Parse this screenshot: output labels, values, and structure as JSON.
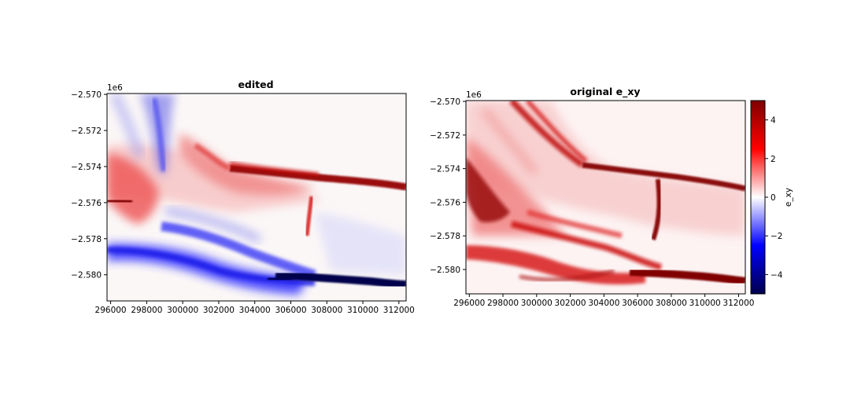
{
  "chart_data": [
    {
      "type": "heatmap",
      "title": "edited",
      "offset_label": "1e6",
      "xlabel": "",
      "ylabel": "",
      "xlim": [
        295800,
        312400
      ],
      "ylim": [
        -2581450,
        -2569950
      ],
      "x_ticks": [
        296000,
        298000,
        300000,
        302000,
        304000,
        306000,
        308000,
        310000,
        312000
      ],
      "x_tick_labels": [
        "296000",
        "298000",
        "300000",
        "302000",
        "304000",
        "306000",
        "308000",
        "310000",
        "312000"
      ],
      "y_ticks": [
        -2570000,
        -2572000,
        -2574000,
        -2576000,
        -2578000,
        -2580000
      ],
      "y_tick_labels": [
        "−2.570",
        "−2.572",
        "−2.574",
        "−2.576",
        "−2.578",
        "−2.580"
      ],
      "colormap": "seismic",
      "vmin": -5,
      "vmax": 5,
      "colorbar": false
    },
    {
      "type": "heatmap",
      "title": "original e_xy",
      "offset_label": "1e6",
      "xlabel": "",
      "ylabel": "",
      "xlim": [
        295800,
        312400
      ],
      "ylim": [
        -2581450,
        -2569950
      ],
      "x_ticks": [
        296000,
        298000,
        300000,
        302000,
        304000,
        306000,
        308000,
        310000,
        312000
      ],
      "x_tick_labels": [
        "296000",
        "298000",
        "300000",
        "302000",
        "304000",
        "306000",
        "308000",
        "310000",
        "312000"
      ],
      "y_ticks": [
        -2570000,
        -2572000,
        -2574000,
        -2576000,
        -2578000,
        -2580000
      ],
      "y_tick_labels": [
        "−2.570",
        "−2.572",
        "−2.574",
        "−2.576",
        "−2.578",
        "−2.580"
      ],
      "colormap": "seismic",
      "vmin": -5,
      "vmax": 5,
      "colorbar": true,
      "colorbar_label": "e_xy",
      "colorbar_ticks": [
        4,
        2,
        0,
        -2,
        -4
      ],
      "colorbar_tick_labels": [
        "4",
        "2",
        "0",
        "−2",
        "−4"
      ]
    }
  ],
  "colors": {
    "cmap_low": "#00004c",
    "cmap_blue": "#0000ff",
    "cmap_mid": "#ffffff",
    "cmap_red": "#ff0000",
    "cmap_high": "#800000",
    "axis": "#000000"
  }
}
